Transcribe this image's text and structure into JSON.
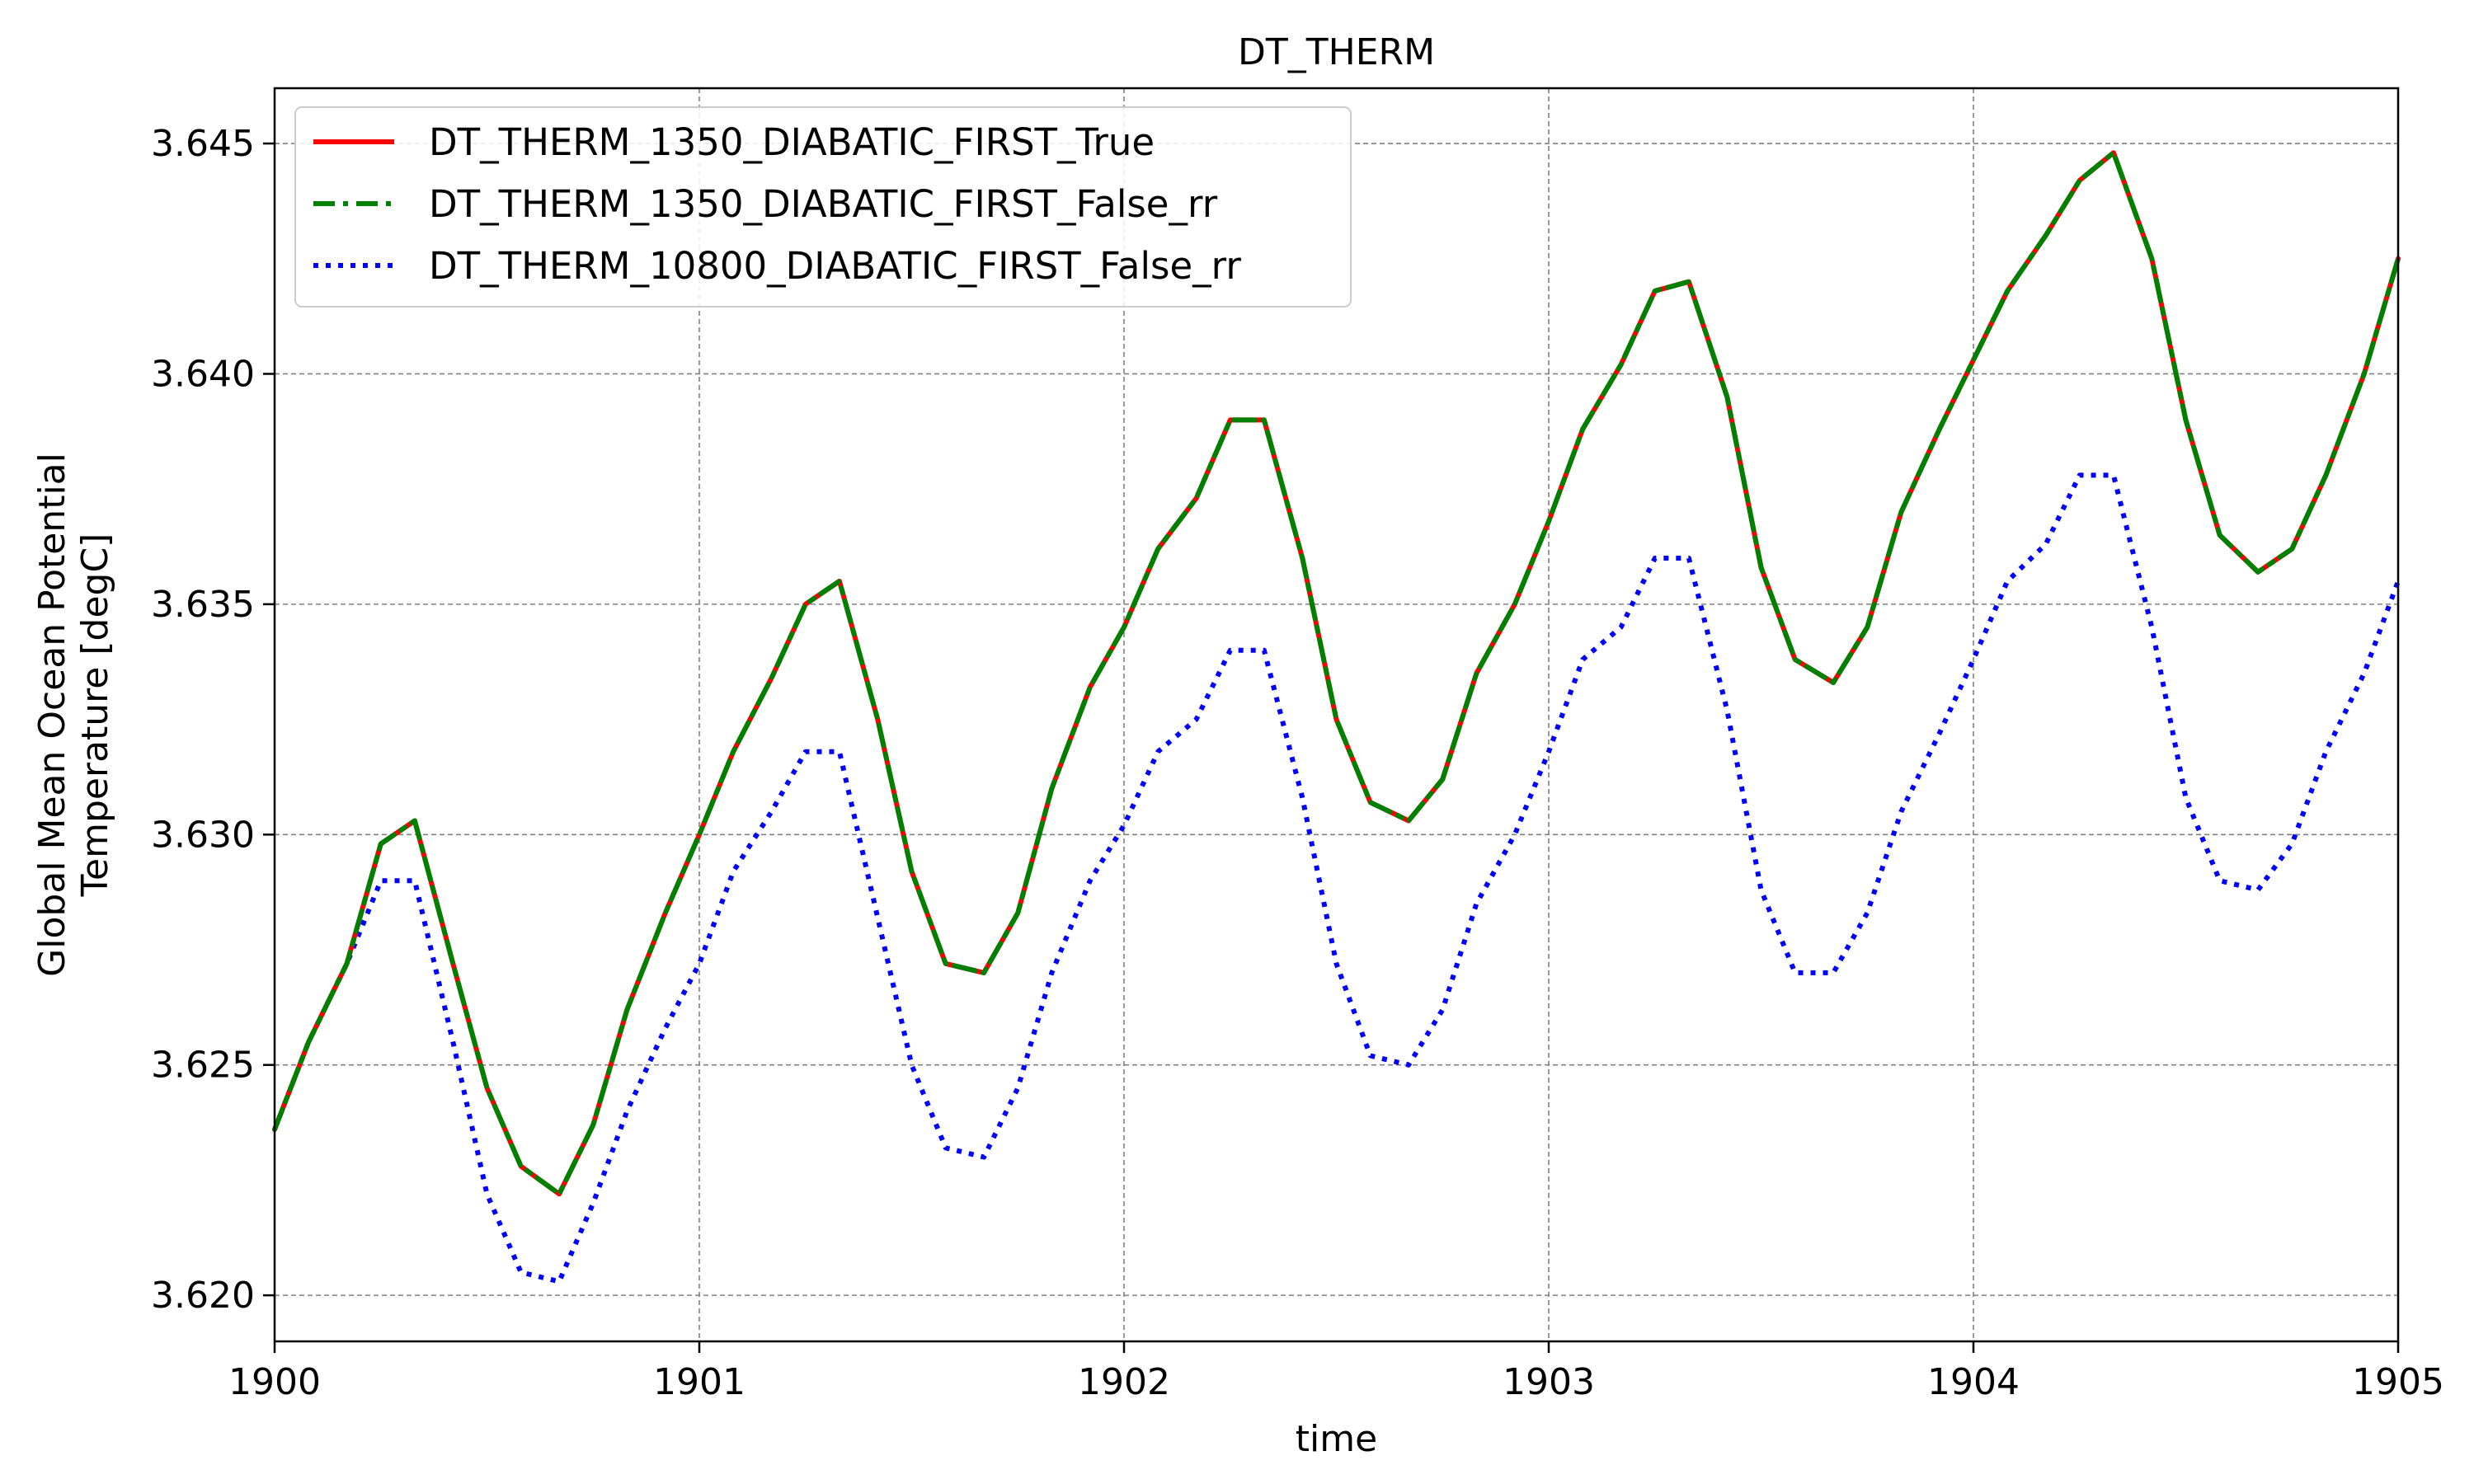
{
  "chart_data": {
    "type": "line",
    "title": "DT_THERM",
    "xlabel": "time",
    "ylabel": [
      "Global Mean Ocean Potential",
      "Temperature [degC]"
    ],
    "xlim": [
      1900,
      1905
    ],
    "ylim": [
      3.619,
      3.6462
    ],
    "xticks": [
      1900,
      1901,
      1902,
      1903,
      1904,
      1905
    ],
    "xtick_labels": [
      "1900",
      "1901",
      "1902",
      "1903",
      "1904",
      "1905"
    ],
    "yticks": [
      3.62,
      3.625,
      3.63,
      3.635,
      3.64,
      3.645
    ],
    "ytick_labels": [
      "3.620",
      "3.625",
      "3.630",
      "3.635",
      "3.640",
      "3.645"
    ],
    "grid": true,
    "legend_position": "top-left",
    "series": [
      {
        "name": "DT_THERM_1350_DIABATIC_FIRST_True",
        "color": "#ff0000",
        "style": "solid",
        "x": [
          1900.0,
          1900.08,
          1900.17,
          1900.25,
          1900.33,
          1900.42,
          1900.5,
          1900.58,
          1900.67,
          1900.75,
          1900.83,
          1900.92,
          1901.0,
          1901.08,
          1901.17,
          1901.25,
          1901.33,
          1901.42,
          1901.5,
          1901.58,
          1901.67,
          1901.75,
          1901.83,
          1901.92,
          1902.0,
          1902.08,
          1902.17,
          1902.25,
          1902.33,
          1902.42,
          1902.5,
          1902.58,
          1902.67,
          1902.75,
          1902.83,
          1902.92,
          1903.0,
          1903.08,
          1903.17,
          1903.25,
          1903.33,
          1903.42,
          1903.5,
          1903.58,
          1903.67,
          1903.75,
          1903.83,
          1903.92,
          1904.0,
          1904.08,
          1904.17,
          1904.25,
          1904.33,
          1904.42,
          1904.5,
          1904.58,
          1904.67,
          1904.75,
          1904.83,
          1904.92,
          1905.0
        ],
        "values": [
          3.6236,
          3.6255,
          3.6272,
          3.6298,
          3.6303,
          3.6272,
          3.6245,
          3.6228,
          3.6222,
          3.6237,
          3.6262,
          3.6283,
          3.63,
          3.6318,
          3.6334,
          3.635,
          3.6355,
          3.6325,
          3.6292,
          3.6272,
          3.627,
          3.6283,
          3.631,
          3.6332,
          3.6345,
          3.6362,
          3.6373,
          3.639,
          3.639,
          3.636,
          3.6325,
          3.6307,
          3.6303,
          3.6312,
          3.6335,
          3.635,
          3.6368,
          3.6388,
          3.6402,
          3.6418,
          3.642,
          3.6395,
          3.6358,
          3.6338,
          3.6333,
          3.6345,
          3.637,
          3.6388,
          3.6403,
          3.6418,
          3.643,
          3.6442,
          3.6448,
          3.6425,
          3.639,
          3.6365,
          3.6357,
          3.6362,
          3.6378,
          3.64,
          3.6425
        ]
      },
      {
        "name": "DT_THERM_1350_DIABATIC_FIRST_False_rr",
        "color": "#008000",
        "style": "dashdot",
        "x": [
          1900.0,
          1900.08,
          1900.17,
          1900.25,
          1900.33,
          1900.42,
          1900.5,
          1900.58,
          1900.67,
          1900.75,
          1900.83,
          1900.92,
          1901.0,
          1901.08,
          1901.17,
          1901.25,
          1901.33,
          1901.42,
          1901.5,
          1901.58,
          1901.67,
          1901.75,
          1901.83,
          1901.92,
          1902.0,
          1902.08,
          1902.17,
          1902.25,
          1902.33,
          1902.42,
          1902.5,
          1902.58,
          1902.67,
          1902.75,
          1902.83,
          1902.92,
          1903.0,
          1903.08,
          1903.17,
          1903.25,
          1903.33,
          1903.42,
          1903.5,
          1903.58,
          1903.67,
          1903.75,
          1903.83,
          1903.92,
          1904.0,
          1904.08,
          1904.17,
          1904.25,
          1904.33,
          1904.42,
          1904.5,
          1904.58,
          1904.67,
          1904.75,
          1904.83,
          1904.92,
          1905.0
        ],
        "values": [
          3.6236,
          3.6255,
          3.6272,
          3.6298,
          3.6303,
          3.6272,
          3.6245,
          3.6228,
          3.6222,
          3.6237,
          3.6262,
          3.6283,
          3.63,
          3.6318,
          3.6334,
          3.635,
          3.6355,
          3.6325,
          3.6292,
          3.6272,
          3.627,
          3.6283,
          3.631,
          3.6332,
          3.6345,
          3.6362,
          3.6373,
          3.639,
          3.639,
          3.636,
          3.6325,
          3.6307,
          3.6303,
          3.6312,
          3.6335,
          3.635,
          3.6368,
          3.6388,
          3.6402,
          3.6418,
          3.642,
          3.6395,
          3.6358,
          3.6338,
          3.6333,
          3.6345,
          3.637,
          3.6388,
          3.6403,
          3.6418,
          3.643,
          3.6442,
          3.6448,
          3.6425,
          3.639,
          3.6365,
          3.6357,
          3.6362,
          3.6378,
          3.64,
          3.6425
        ]
      },
      {
        "name": "DT_THERM_10800_DIABATIC_FIRST_False_rr",
        "color": "#0000ff",
        "style": "dotted",
        "x": [
          1900.0,
          1900.08,
          1900.17,
          1900.25,
          1900.33,
          1900.42,
          1900.5,
          1900.58,
          1900.67,
          1900.75,
          1900.83,
          1900.92,
          1901.0,
          1901.08,
          1901.17,
          1901.25,
          1901.33,
          1901.42,
          1901.5,
          1901.58,
          1901.67,
          1901.75,
          1901.83,
          1901.92,
          1902.0,
          1902.08,
          1902.17,
          1902.25,
          1902.33,
          1902.42,
          1902.5,
          1902.58,
          1902.67,
          1902.75,
          1902.83,
          1902.92,
          1903.0,
          1903.08,
          1903.17,
          1903.25,
          1903.33,
          1903.42,
          1903.5,
          1903.58,
          1903.67,
          1903.75,
          1903.83,
          1903.92,
          1904.0,
          1904.08,
          1904.17,
          1904.25,
          1904.33,
          1904.42,
          1904.5,
          1904.58,
          1904.67,
          1904.75,
          1904.83,
          1904.92,
          1905.0
        ],
        "values": [
          3.6236,
          3.6255,
          3.6272,
          3.629,
          3.629,
          3.6255,
          3.6222,
          3.6205,
          3.6203,
          3.622,
          3.624,
          3.6258,
          3.6272,
          3.6292,
          3.6305,
          3.6318,
          3.6318,
          3.6282,
          3.625,
          3.6232,
          3.623,
          3.6245,
          3.627,
          3.629,
          3.6302,
          3.6318,
          3.6325,
          3.634,
          3.634,
          3.6308,
          3.6272,
          3.6252,
          3.625,
          3.6262,
          3.6285,
          3.63,
          3.6318,
          3.6338,
          3.6345,
          3.636,
          3.636,
          3.6327,
          3.6288,
          3.627,
          3.627,
          3.6283,
          3.6305,
          3.6322,
          3.6338,
          3.6355,
          3.6363,
          3.6378,
          3.6378,
          3.6345,
          3.6308,
          3.629,
          3.6288,
          3.6298,
          3.6318,
          3.6335,
          3.6355
        ]
      }
    ]
  }
}
